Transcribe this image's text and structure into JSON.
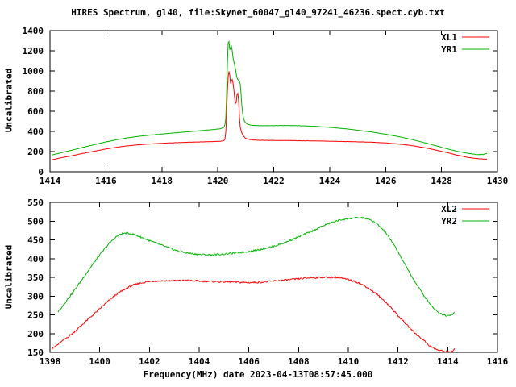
{
  "title": "HIRES Spectrum, gl40, file:Skynet_60047_gl40_97241_46236.spect.cyb.txt",
  "xlabel": "Frequency(MHz) date 2023-04-13T08:57:45.000",
  "chart_data": [
    {
      "type": "line",
      "position": "top",
      "ylabel": "Uncalibrated",
      "x_range": [
        1414,
        1430
      ],
      "x_ticks": [
        1414,
        1416,
        1418,
        1420,
        1422,
        1424,
        1426,
        1428,
        1430
      ],
      "y_range": [
        0,
        1400
      ],
      "y_ticks": [
        0,
        200,
        400,
        600,
        800,
        1000,
        1200,
        1400
      ],
      "grid": false,
      "legend_position": "top-right",
      "series": [
        {
          "name": "XL1",
          "color": "#ff0000",
          "noise": 1.2,
          "points": [
            [
              1414.05,
              118
            ],
            [
              1414.4,
              138
            ],
            [
              1414.8,
              160
            ],
            [
              1415.2,
              183
            ],
            [
              1415.6,
              205
            ],
            [
              1416.0,
              226
            ],
            [
              1416.4,
              244
            ],
            [
              1416.8,
              258
            ],
            [
              1417.2,
              268
            ],
            [
              1417.6,
              276
            ],
            [
              1418.0,
              282
            ],
            [
              1418.5,
              288
            ],
            [
              1419.0,
              293
            ],
            [
              1419.5,
              297
            ],
            [
              1420.0,
              301
            ],
            [
              1420.15,
              304
            ],
            [
              1420.25,
              312
            ],
            [
              1420.3,
              420
            ],
            [
              1420.34,
              780
            ],
            [
              1420.38,
              990
            ],
            [
              1420.41,
              1000
            ],
            [
              1420.44,
              930
            ],
            [
              1420.46,
              868
            ],
            [
              1420.49,
              905
            ],
            [
              1420.52,
              918
            ],
            [
              1420.55,
              872
            ],
            [
              1420.58,
              800
            ],
            [
              1420.62,
              688
            ],
            [
              1420.65,
              655
            ],
            [
              1420.68,
              760
            ],
            [
              1420.71,
              792
            ],
            [
              1420.74,
              735
            ],
            [
              1420.77,
              560
            ],
            [
              1420.8,
              445
            ],
            [
              1420.85,
              392
            ],
            [
              1420.9,
              360
            ],
            [
              1420.97,
              338
            ],
            [
              1421.05,
              325
            ],
            [
              1421.2,
              316
            ],
            [
              1421.5,
              312
            ],
            [
              1422.0,
              311
            ],
            [
              1422.5,
              310
            ],
            [
              1423.0,
              307
            ],
            [
              1423.5,
              305
            ],
            [
              1424.0,
              303
            ],
            [
              1424.5,
              300
            ],
            [
              1425.0,
              297
            ],
            [
              1425.5,
              293
            ],
            [
              1426.0,
              286
            ],
            [
              1426.5,
              274
            ],
            [
              1427.0,
              257
            ],
            [
              1427.4,
              238
            ],
            [
              1427.8,
              215
            ],
            [
              1428.2,
              190
            ],
            [
              1428.6,
              162
            ],
            [
              1429.0,
              140
            ],
            [
              1429.3,
              130
            ],
            [
              1429.5,
              126
            ],
            [
              1429.65,
              125
            ]
          ]
        },
        {
          "name": "YR1",
          "color": "#00b400",
          "noise": 1.5,
          "points": [
            [
              1414.05,
              165
            ],
            [
              1414.4,
              188
            ],
            [
              1414.8,
              215
            ],
            [
              1415.2,
              243
            ],
            [
              1415.6,
              270
            ],
            [
              1416.0,
              296
            ],
            [
              1416.4,
              318
            ],
            [
              1416.8,
              337
            ],
            [
              1417.2,
              352
            ],
            [
              1417.6,
              364
            ],
            [
              1418.0,
              375
            ],
            [
              1418.5,
              387
            ],
            [
              1419.0,
              398
            ],
            [
              1419.5,
              410
            ],
            [
              1419.9,
              420
            ],
            [
              1420.1,
              428
            ],
            [
              1420.22,
              440
            ],
            [
              1420.28,
              490
            ],
            [
              1420.32,
              800
            ],
            [
              1420.35,
              1150
            ],
            [
              1420.38,
              1330
            ],
            [
              1420.41,
              1270
            ],
            [
              1420.43,
              1205
            ],
            [
              1420.46,
              1235
            ],
            [
              1420.49,
              1248
            ],
            [
              1420.52,
              1195
            ],
            [
              1420.55,
              1120
            ],
            [
              1420.58,
              1085
            ],
            [
              1420.61,
              1050
            ],
            [
              1420.64,
              1010
            ],
            [
              1420.67,
              950
            ],
            [
              1420.7,
              920
            ],
            [
              1420.74,
              908
            ],
            [
              1420.78,
              895
            ],
            [
              1420.81,
              862
            ],
            [
              1420.84,
              740
            ],
            [
              1420.87,
              615
            ],
            [
              1420.91,
              540
            ],
            [
              1420.96,
              498
            ],
            [
              1421.05,
              472
            ],
            [
              1421.2,
              462
            ],
            [
              1421.5,
              457
            ],
            [
              1422.0,
              458
            ],
            [
              1422.5,
              459
            ],
            [
              1423.0,
              456
            ],
            [
              1423.5,
              450
            ],
            [
              1424.0,
              441
            ],
            [
              1424.5,
              428
            ],
            [
              1425.0,
              412
            ],
            [
              1425.5,
              394
            ],
            [
              1426.0,
              372
            ],
            [
              1426.5,
              346
            ],
            [
              1427.0,
              316
            ],
            [
              1427.4,
              288
            ],
            [
              1427.8,
              258
            ],
            [
              1428.2,
              228
            ],
            [
              1428.6,
              200
            ],
            [
              1429.0,
              180
            ],
            [
              1429.3,
              170
            ],
            [
              1429.5,
              172
            ],
            [
              1429.65,
              186
            ]
          ]
        }
      ]
    },
    {
      "type": "line",
      "position": "bottom",
      "ylabel": "Uncalibrated",
      "x_range": [
        1398,
        1416
      ],
      "x_ticks": [
        1398,
        1400,
        1402,
        1404,
        1406,
        1408,
        1410,
        1412,
        1414,
        1416
      ],
      "y_range": [
        150,
        550
      ],
      "y_ticks": [
        150,
        200,
        250,
        300,
        350,
        400,
        450,
        500,
        550
      ],
      "grid": false,
      "legend_position": "top-right",
      "series": [
        {
          "name": "XL2",
          "color": "#ff0000",
          "noise": 2.2,
          "points": [
            [
              1398.05,
              158
            ],
            [
              1398.3,
              170
            ],
            [
              1398.6,
              185
            ],
            [
              1398.9,
              200
            ],
            [
              1399.2,
              218
            ],
            [
              1399.5,
              236
            ],
            [
              1399.8,
              254
            ],
            [
              1400.1,
              272
            ],
            [
              1400.4,
              290
            ],
            [
              1400.7,
              306
            ],
            [
              1401.0,
              318
            ],
            [
              1401.3,
              328
            ],
            [
              1401.6,
              334
            ],
            [
              1401.9,
              338
            ],
            [
              1402.2,
              340
            ],
            [
              1402.6,
              341
            ],
            [
              1403.0,
              341
            ],
            [
              1403.5,
              342
            ],
            [
              1404.0,
              340
            ],
            [
              1404.5,
              339
            ],
            [
              1405.0,
              338
            ],
            [
              1405.5,
              337
            ],
            [
              1406.0,
              336
            ],
            [
              1406.5,
              337
            ],
            [
              1407.0,
              340
            ],
            [
              1407.5,
              343
            ],
            [
              1408.0,
              346
            ],
            [
              1408.5,
              349
            ],
            [
              1409.0,
              350
            ],
            [
              1409.5,
              350
            ],
            [
              1410.0,
              344
            ],
            [
              1410.4,
              336
            ],
            [
              1410.8,
              322
            ],
            [
              1411.2,
              302
            ],
            [
              1411.6,
              278
            ],
            [
              1412.0,
              248
            ],
            [
              1412.4,
              220
            ],
            [
              1412.7,
              200
            ],
            [
              1413.0,
              184
            ],
            [
              1413.3,
              166
            ],
            [
              1413.6,
              156
            ],
            [
              1413.9,
              152
            ],
            [
              1414.15,
              152
            ],
            [
              1414.3,
              159
            ]
          ]
        },
        {
          "name": "YR2",
          "color": "#00b400",
          "noise": 2.2,
          "points": [
            [
              1398.3,
              256
            ],
            [
              1398.6,
              282
            ],
            [
              1398.9,
              308
            ],
            [
              1399.2,
              336
            ],
            [
              1399.5,
              364
            ],
            [
              1399.8,
              392
            ],
            [
              1400.1,
              418
            ],
            [
              1400.4,
              442
            ],
            [
              1400.7,
              460
            ],
            [
              1400.9,
              467
            ],
            [
              1401.1,
              468
            ],
            [
              1401.4,
              464
            ],
            [
              1401.7,
              456
            ],
            [
              1402.0,
              448
            ],
            [
              1402.4,
              438
            ],
            [
              1402.8,
              428
            ],
            [
              1403.2,
              419
            ],
            [
              1403.6,
              414
            ],
            [
              1404.0,
              411
            ],
            [
              1404.5,
              410
            ],
            [
              1405.0,
              412
            ],
            [
              1405.5,
              415
            ],
            [
              1406.0,
              419
            ],
            [
              1406.5,
              425
            ],
            [
              1407.0,
              433
            ],
            [
              1407.5,
              444
            ],
            [
              1408.0,
              458
            ],
            [
              1408.5,
              472
            ],
            [
              1409.0,
              488
            ],
            [
              1409.4,
              498
            ],
            [
              1409.8,
              505
            ],
            [
              1410.2,
              508
            ],
            [
              1410.6,
              509
            ],
            [
              1410.9,
              503
            ],
            [
              1411.2,
              490
            ],
            [
              1411.5,
              470
            ],
            [
              1411.9,
              430
            ],
            [
              1412.3,
              382
            ],
            [
              1412.7,
              336
            ],
            [
              1413.1,
              296
            ],
            [
              1413.4,
              270
            ],
            [
              1413.7,
              253
            ],
            [
              1413.95,
              248
            ],
            [
              1414.15,
              251
            ],
            [
              1414.3,
              257
            ]
          ]
        }
      ]
    }
  ]
}
